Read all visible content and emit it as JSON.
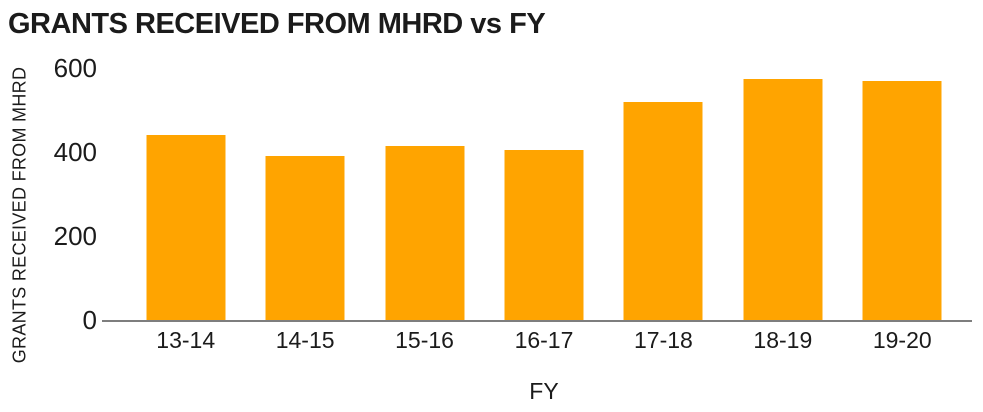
{
  "chart_data": {
    "type": "bar",
    "title": "GRANTS RECEIVED FROM MHRD vs FY",
    "xlabel": "FY",
    "ylabel": "GRANTS RECEIVED FROM MHRD",
    "categories": [
      "13-14",
      "14-15",
      "15-16",
      "16-17",
      "17-18",
      "18-19",
      "19-20"
    ],
    "values": [
      440,
      390,
      415,
      405,
      520,
      575,
      570
    ],
    "ylim": [
      0,
      600
    ],
    "yticks": [
      0,
      200,
      400,
      600
    ],
    "bar_color": "#FFA400",
    "axis_line_color": "#7E7E7E",
    "text_color": "#1B1B1B",
    "background_color": "#FFFFFF",
    "grid": false,
    "legend": false
  }
}
